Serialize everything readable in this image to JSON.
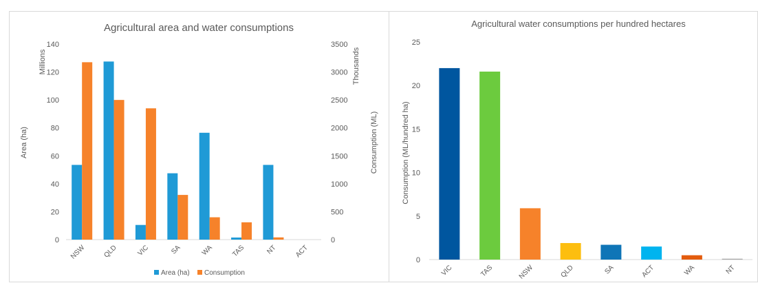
{
  "chart_data": [
    {
      "type": "bar",
      "title": "Agricultural area and water consumptions",
      "categories": [
        "NSW",
        "QLD",
        "VIC",
        "SA",
        "WA",
        "TAS",
        "NT",
        "ACT"
      ],
      "ylabel": "Area (ha)",
      "y_display_unit": "Millions",
      "ylim": [
        0,
        140
      ],
      "yticks": [
        0,
        20,
        40,
        60,
        80,
        100,
        120,
        140
      ],
      "y2label": "Consumption (ML)",
      "y2_display_unit": "Thousands",
      "y2lim": [
        0,
        3500
      ],
      "y2ticks": [
        0,
        500,
        1000,
        1500,
        2000,
        2500,
        3000,
        3500
      ],
      "series": [
        {
          "name": "Area (ha)",
          "axis": "left",
          "color": "#1f9ad6",
          "values": [
            53.5,
            127.5,
            10.5,
            47.5,
            76.5,
            1.5,
            53.5,
            0
          ]
        },
        {
          "name": "Consumption",
          "axis": "right",
          "color": "#f6822a",
          "values": [
            3175,
            2500,
            2350,
            800,
            400,
            310,
            40,
            0
          ]
        }
      ],
      "legend": "bottom",
      "grid": false
    },
    {
      "type": "bar",
      "title": "Agricultural water consumptions per hundred hectares",
      "categories": [
        "VIC",
        "TAS",
        "NSW",
        "QLD",
        "SA",
        "ACT",
        "WA",
        "NT"
      ],
      "values": [
        22,
        21.6,
        5.9,
        1.9,
        1.7,
        1.5,
        0.5,
        0.1
      ],
      "colors": [
        "#00569f",
        "#6ccb3e",
        "#f6822a",
        "#fdbe0f",
        "#0f75b7",
        "#00b4ef",
        "#e35c0e",
        "#a6a6a6"
      ],
      "ylabel": "Consumption (ML/hundred ha)",
      "ylim": [
        0,
        25
      ],
      "yticks": [
        0,
        5,
        10,
        15,
        20,
        25
      ],
      "legend": "none",
      "grid": false
    }
  ]
}
